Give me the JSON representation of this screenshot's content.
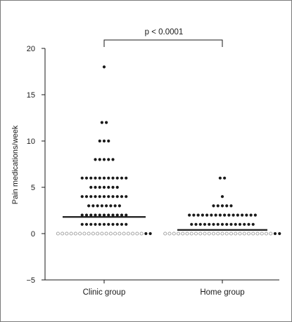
{
  "chart_data": {
    "type": "scatter",
    "title": "",
    "xlabel": "",
    "ylabel": "Pain medications/week",
    "ylim": [
      -5,
      20
    ],
    "yticks": [
      -5,
      0,
      5,
      10,
      15,
      20
    ],
    "categories": [
      "Clinic group",
      "Home group"
    ],
    "annotation": "p < 0.0001",
    "colors": {
      "filled": "#1a1a1a",
      "open": "#9a9a9a",
      "median": "#1a1a1a",
      "axis": "#1a1a1a"
    },
    "series": [
      {
        "category": "Clinic group",
        "median": 1.8,
        "points": [
          {
            "value": 18,
            "n_filled": 1,
            "n_open": 0
          },
          {
            "value": 12,
            "n_filled": 2,
            "n_open": 0
          },
          {
            "value": 10,
            "n_filled": 3,
            "n_open": 0
          },
          {
            "value": 8,
            "n_filled": 5,
            "n_open": 0
          },
          {
            "value": 6,
            "n_filled": 11,
            "n_open": 0
          },
          {
            "value": 5,
            "n_filled": 7,
            "n_open": 0
          },
          {
            "value": 4,
            "n_filled": 11,
            "n_open": 0
          },
          {
            "value": 3,
            "n_filled": 8,
            "n_open": 0
          },
          {
            "value": 2,
            "n_filled": 11,
            "n_open": 0
          },
          {
            "value": 1,
            "n_filled": 11,
            "n_open": 0
          },
          {
            "value": 0,
            "n_filled": 2,
            "n_open": 20
          }
        ]
      },
      {
        "category": "Home group",
        "median": 0.4,
        "points": [
          {
            "value": 6,
            "n_filled": 2,
            "n_open": 0
          },
          {
            "value": 4,
            "n_filled": 1,
            "n_open": 0
          },
          {
            "value": 3,
            "n_filled": 5,
            "n_open": 0
          },
          {
            "value": 2,
            "n_filled": 16,
            "n_open": 0
          },
          {
            "value": 1,
            "n_filled": 15,
            "n_open": 0
          },
          {
            "value": 0,
            "n_filled": 2,
            "n_open": 25
          }
        ]
      }
    ]
  }
}
